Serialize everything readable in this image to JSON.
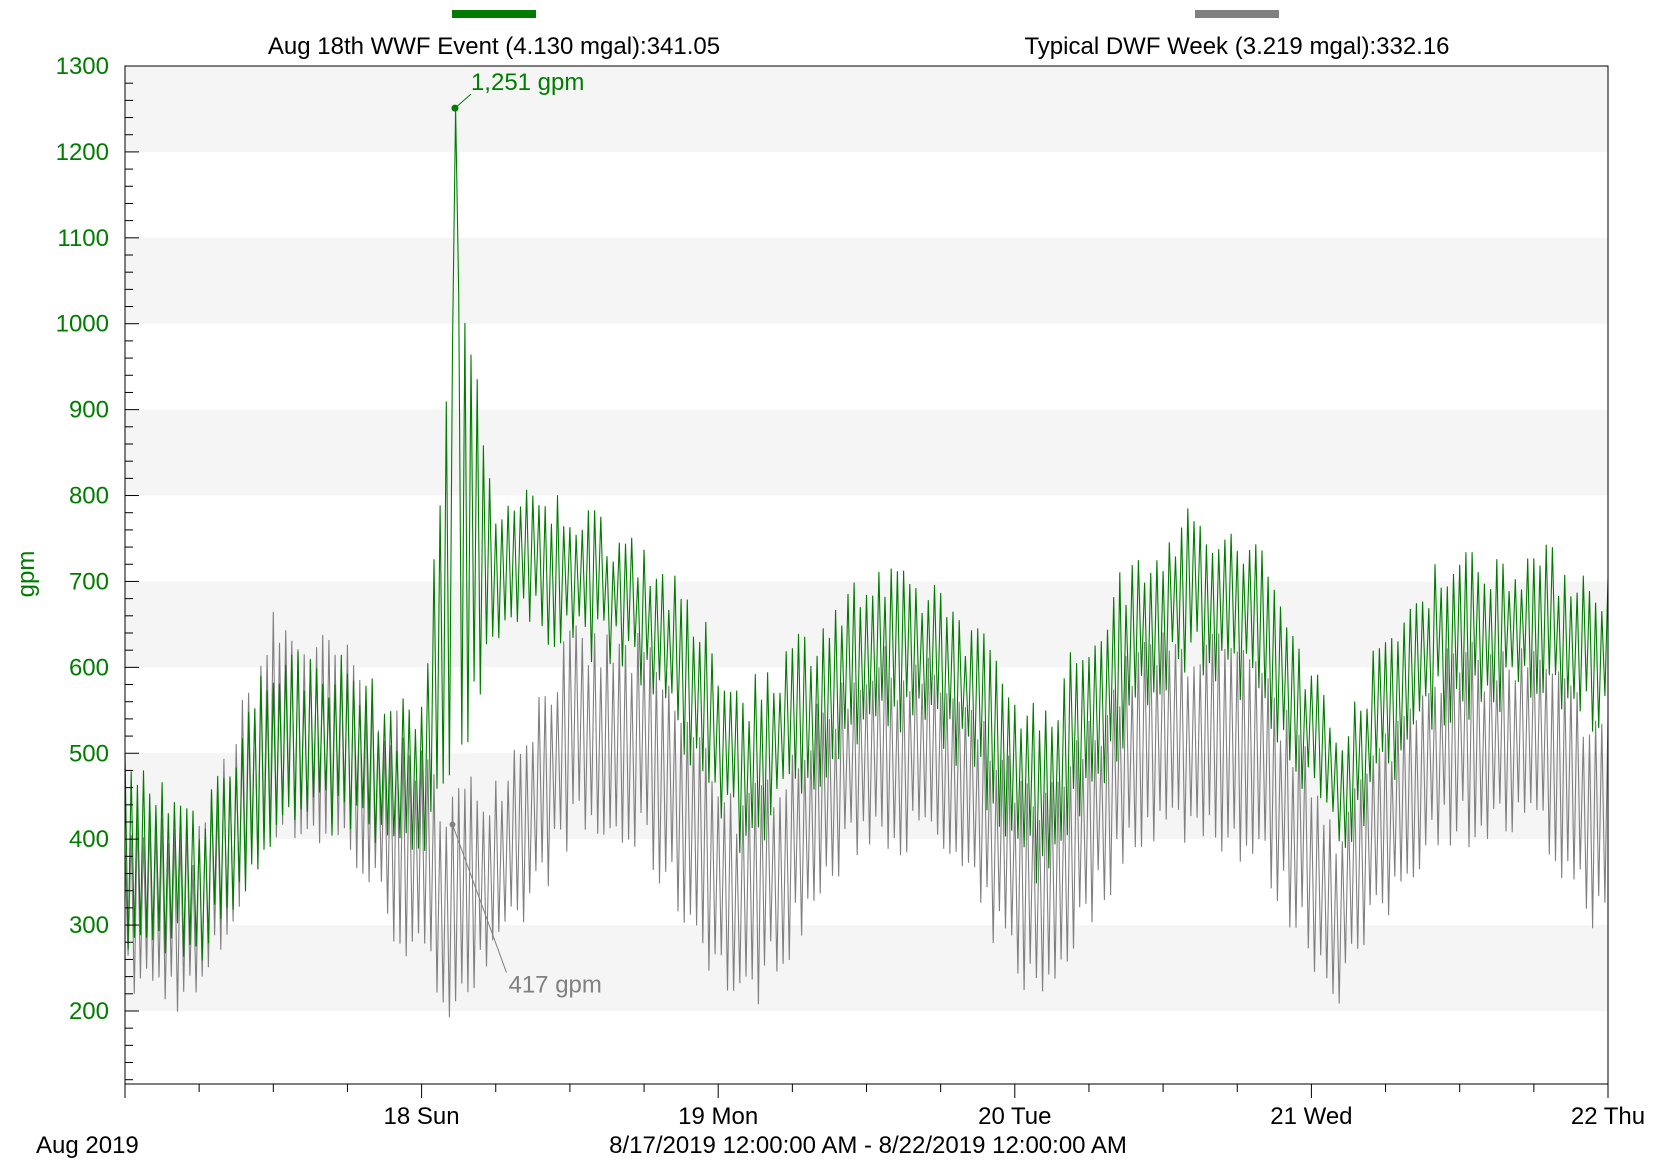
{
  "chart_data": {
    "type": "line",
    "ylabel": "gpm",
    "ylim": [
      115,
      1300
    ],
    "yticks": [
      200,
      300,
      400,
      500,
      600,
      700,
      800,
      900,
      1000,
      1100,
      1200,
      1300
    ],
    "x_range": [
      "2019-08-17T00:00",
      "2019-08-22T00:00"
    ],
    "x_ticks": [
      {
        "t": "2019-08-18T00:00",
        "label": "18 Sun"
      },
      {
        "t": "2019-08-19T00:00",
        "label": "19 Mon"
      },
      {
        "t": "2019-08-20T00:00",
        "label": "20 Tue"
      },
      {
        "t": "2019-08-21T00:00",
        "label": "21 Wed"
      },
      {
        "t": "2019-08-22T00:00",
        "label": "22 Thu"
      }
    ],
    "month_label": "Aug 2019",
    "range_label": "8/17/2019 12:00:00 AM - 8/22/2019 12:00:00 AM",
    "grid": "horizontal bands",
    "legend_position": "top",
    "series": [
      {
        "name": "Aug 18th WWF Event (4.130 mgal):341.05",
        "color": "#007d00",
        "envelope_unit": "hours since 2019-08-17T00:00",
        "envelope": [
          {
            "t": 0,
            "lo": 290,
            "hi": 480
          },
          {
            "t": 6,
            "lo": 270,
            "hi": 420
          },
          {
            "t": 12,
            "lo": 420,
            "hi": 600
          },
          {
            "t": 18,
            "lo": 430,
            "hi": 590
          },
          {
            "t": 22,
            "lo": 390,
            "hi": 530
          },
          {
            "t": 24,
            "lo": 380,
            "hi": 550
          },
          {
            "t": 27,
            "lo": 500,
            "hi": 1050
          },
          {
            "t": 30,
            "lo": 660,
            "hi": 780
          },
          {
            "t": 36,
            "lo": 650,
            "hi": 780
          },
          {
            "t": 42,
            "lo": 600,
            "hi": 730
          },
          {
            "t": 50,
            "lo": 400,
            "hi": 560
          },
          {
            "t": 60,
            "lo": 540,
            "hi": 690
          },
          {
            "t": 66,
            "lo": 540,
            "hi": 680
          },
          {
            "t": 74,
            "lo": 370,
            "hi": 530
          },
          {
            "t": 82,
            "lo": 560,
            "hi": 720
          },
          {
            "t": 86,
            "lo": 620,
            "hi": 760
          },
          {
            "t": 92,
            "lo": 580,
            "hi": 720
          },
          {
            "t": 98,
            "lo": 400,
            "hi": 520
          },
          {
            "t": 106,
            "lo": 560,
            "hi": 710
          },
          {
            "t": 114,
            "lo": 580,
            "hi": 720
          },
          {
            "t": 120,
            "lo": 540,
            "hi": 690
          }
        ],
        "peak": {
          "t": 26.7,
          "y": 1251
        },
        "peak_label": "1,251 gpm"
      },
      {
        "name": "Typical DWF Week (3.219 mgal):332.16",
        "color": "#808080",
        "envelope_unit": "hours since 2019-08-17T00:00",
        "envelope": [
          {
            "t": 0,
            "lo": 240,
            "hi": 420
          },
          {
            "t": 6,
            "lo": 220,
            "hi": 390
          },
          {
            "t": 12,
            "lo": 430,
            "hi": 640
          },
          {
            "t": 18,
            "lo": 400,
            "hi": 600
          },
          {
            "t": 22,
            "lo": 300,
            "hi": 520
          },
          {
            "t": 26,
            "lo": 220,
            "hi": 440
          },
          {
            "t": 30,
            "lo": 260,
            "hi": 460
          },
          {
            "t": 36,
            "lo": 420,
            "hi": 620
          },
          {
            "t": 42,
            "lo": 400,
            "hi": 610
          },
          {
            "t": 50,
            "lo": 210,
            "hi": 420
          },
          {
            "t": 60,
            "lo": 420,
            "hi": 600
          },
          {
            "t": 66,
            "lo": 400,
            "hi": 580
          },
          {
            "t": 74,
            "lo": 220,
            "hi": 420
          },
          {
            "t": 82,
            "lo": 420,
            "hi": 610
          },
          {
            "t": 88,
            "lo": 420,
            "hi": 620
          },
          {
            "t": 92,
            "lo": 380,
            "hi": 580
          },
          {
            "t": 98,
            "lo": 230,
            "hi": 410
          },
          {
            "t": 106,
            "lo": 420,
            "hi": 600
          },
          {
            "t": 114,
            "lo": 420,
            "hi": 600
          },
          {
            "t": 120,
            "lo": 300,
            "hi": 520
          }
        ],
        "marker": {
          "t": 26.5,
          "y": 417
        },
        "marker_label": "417 gpm"
      }
    ]
  }
}
